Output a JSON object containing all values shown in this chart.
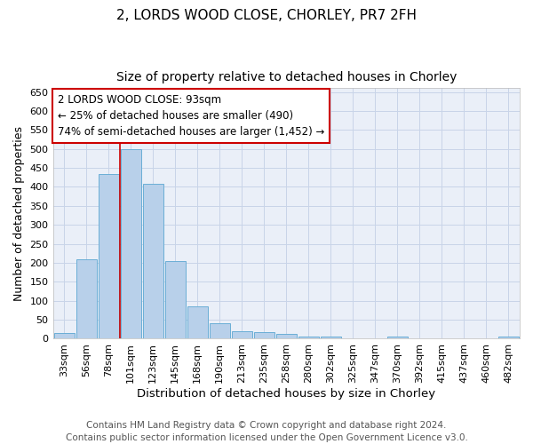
{
  "title": "2, LORDS WOOD CLOSE, CHORLEY, PR7 2FH",
  "subtitle": "Size of property relative to detached houses in Chorley",
  "xlabel": "Distribution of detached houses by size in Chorley",
  "ylabel": "Number of detached properties",
  "footer_line1": "Contains HM Land Registry data © Crown copyright and database right 2024.",
  "footer_line2": "Contains public sector information licensed under the Open Government Licence v3.0.",
  "bin_labels": [
    "33sqm",
    "56sqm",
    "78sqm",
    "101sqm",
    "123sqm",
    "145sqm",
    "168sqm",
    "190sqm",
    "213sqm",
    "235sqm",
    "258sqm",
    "280sqm",
    "302sqm",
    "325sqm",
    "347sqm",
    "370sqm",
    "392sqm",
    "415sqm",
    "437sqm",
    "460sqm",
    "482sqm"
  ],
  "bar_values": [
    15,
    210,
    435,
    500,
    408,
    205,
    85,
    40,
    20,
    18,
    12,
    5,
    5,
    0,
    0,
    5,
    0,
    0,
    0,
    0,
    5
  ],
  "bar_color": "#b8d0ea",
  "bar_edge_color": "#6aaed6",
  "ylim": [
    0,
    660
  ],
  "yticks": [
    0,
    50,
    100,
    150,
    200,
    250,
    300,
    350,
    400,
    450,
    500,
    550,
    600,
    650
  ],
  "grid_color": "#c8d4e8",
  "background_color": "#eaeff8",
  "vline_x_index": 2.5,
  "vline_color": "#cc0000",
  "annotation_line1": "2 LORDS WOOD CLOSE: 93sqm",
  "annotation_line2": "← 25% of detached houses are smaller (490)",
  "annotation_line3": "74% of semi-detached houses are larger (1,452) →",
  "annotation_box_color": "#cc0000",
  "title_fontsize": 11,
  "subtitle_fontsize": 10,
  "xlabel_fontsize": 9.5,
  "ylabel_fontsize": 9,
  "tick_fontsize": 8,
  "footer_fontsize": 7.5,
  "annotation_fontsize": 8.5
}
